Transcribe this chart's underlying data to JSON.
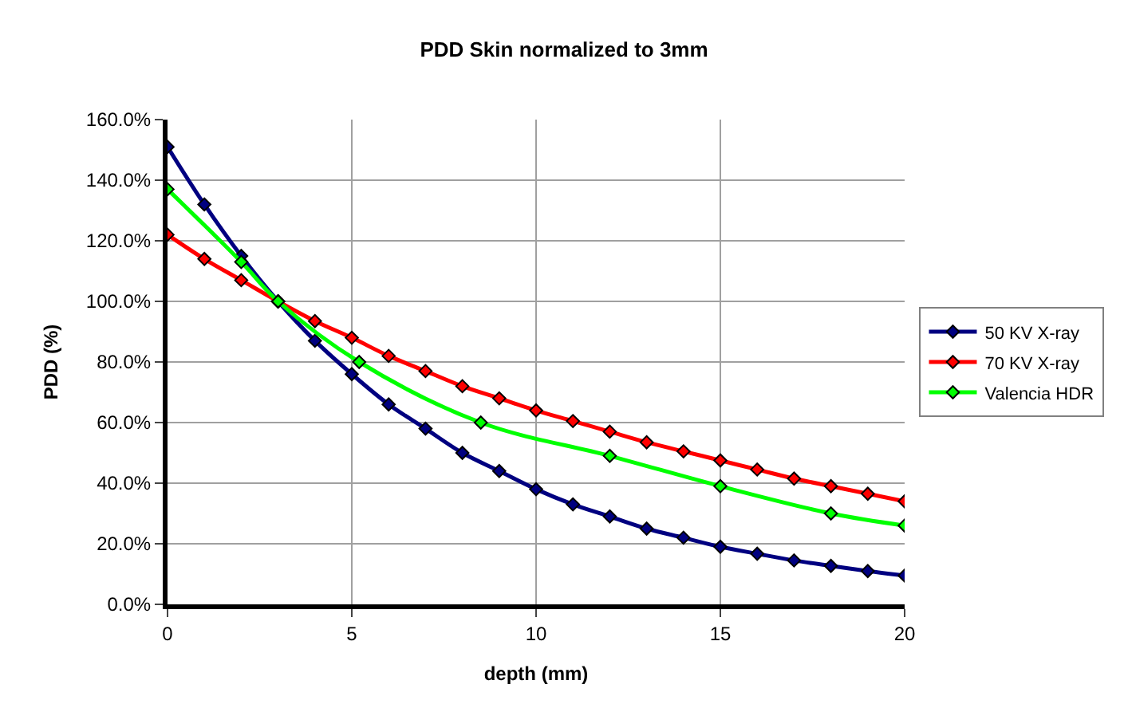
{
  "chart_data": {
    "type": "line",
    "title": "PDD Skin normalized to 3mm",
    "xlabel": "depth (mm)",
    "ylabel": "PDD (%)",
    "xlim": [
      0,
      20
    ],
    "xticks": [
      0,
      5,
      10,
      15,
      20
    ],
    "ylim": [
      0,
      160
    ],
    "yticks": [
      {
        "value": 0,
        "label": "0.0%"
      },
      {
        "value": 20,
        "label": "20.0%"
      },
      {
        "value": 40,
        "label": "40.0%"
      },
      {
        "value": 60,
        "label": "60.0%"
      },
      {
        "value": 80,
        "label": "80.0%"
      },
      {
        "value": 100,
        "label": "100.0%"
      },
      {
        "value": 120,
        "label": "120.0%"
      },
      {
        "value": 140,
        "label": "140.0%"
      },
      {
        "value": 160,
        "label": "160.0%"
      }
    ],
    "grid": true,
    "legend": "right",
    "marker": "diamond",
    "line_style": "solid",
    "series": [
      {
        "name": "50 KV X-ray",
        "color": "#000080",
        "x": [
          0,
          1,
          2,
          3,
          4,
          5,
          6,
          7,
          8,
          9,
          10,
          11,
          12,
          13,
          14,
          15,
          16,
          17,
          18,
          19,
          20
        ],
        "values": [
          151,
          132,
          115,
          100,
          87,
          76,
          66,
          58,
          50,
          44,
          38,
          33,
          29,
          25,
          22,
          19,
          16.7,
          14.5,
          12.7,
          11,
          9.5
        ]
      },
      {
        "name": "70 KV X-ray",
        "color": "#ff0000",
        "x": [
          0,
          1,
          2,
          3,
          4,
          5,
          6,
          7,
          8,
          9,
          10,
          11,
          12,
          13,
          14,
          15,
          16,
          17,
          18,
          19,
          20
        ],
        "values": [
          122,
          114,
          107,
          100,
          93.5,
          88,
          82,
          77,
          72,
          68,
          64,
          60.5,
          57,
          53.5,
          50.5,
          47.5,
          44.5,
          41.5,
          39,
          36.5,
          34
        ]
      },
      {
        "name": "Valencia HDR",
        "color": "#00ff00",
        "x": [
          0,
          2,
          3,
          5.2,
          8.5,
          12,
          15,
          18,
          20
        ],
        "values": [
          137,
          113,
          100,
          80,
          60,
          49,
          39,
          30,
          26
        ]
      }
    ]
  }
}
